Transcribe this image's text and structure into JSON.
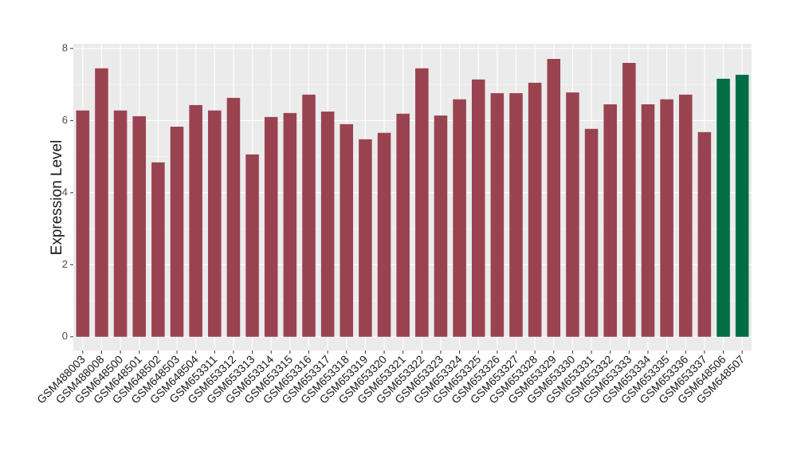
{
  "chart_data": {
    "type": "bar",
    "y_label": "Expression Level",
    "categories": [
      "GSM488003",
      "GSM488008",
      "GSM648500",
      "GSM648501",
      "GSM648502",
      "GSM648503",
      "GSM648504",
      "GSM653311",
      "GSM653312",
      "GSM653313",
      "GSM653314",
      "GSM653315",
      "GSM653316",
      "GSM653317",
      "GSM653318",
      "GSM653319",
      "GSM653320",
      "GSM653321",
      "GSM653322",
      "GSM653323",
      "GSM653324",
      "GSM653325",
      "GSM653326",
      "GSM653327",
      "GSM653328",
      "GSM653329",
      "GSM653330",
      "GSM653331",
      "GSM653332",
      "GSM653333",
      "GSM653334",
      "GSM653335",
      "GSM653336",
      "GSM653337",
      "GSM648506",
      "GSM648507"
    ],
    "values": [
      6.28,
      7.45,
      6.28,
      6.12,
      4.84,
      5.83,
      6.43,
      6.28,
      6.63,
      5.06,
      6.1,
      6.21,
      6.72,
      6.25,
      5.9,
      5.48,
      5.66,
      6.19,
      7.45,
      6.14,
      6.59,
      7.14,
      6.76,
      6.76,
      7.05,
      7.71,
      6.78,
      5.77,
      6.45,
      7.6,
      6.45,
      6.59,
      6.72,
      5.68,
      7.16,
      7.27
    ],
    "colors": [
      "#9a4350",
      "#9a4350",
      "#9a4350",
      "#9a4350",
      "#9a4350",
      "#9a4350",
      "#9a4350",
      "#9a4350",
      "#9a4350",
      "#9a4350",
      "#9a4350",
      "#9a4350",
      "#9a4350",
      "#9a4350",
      "#9a4350",
      "#9a4350",
      "#9a4350",
      "#9a4350",
      "#9a4350",
      "#9a4350",
      "#9a4350",
      "#9a4350",
      "#9a4350",
      "#9a4350",
      "#9a4350",
      "#9a4350",
      "#9a4350",
      "#9a4350",
      "#9a4350",
      "#9a4350",
      "#9a4350",
      "#9a4350",
      "#9a4350",
      "#9a4350",
      "#006d45",
      "#006d45"
    ],
    "ylim": [
      -0.38,
      8.13
    ],
    "yticks": [
      0,
      2,
      4,
      6,
      8
    ],
    "grid": true
  }
}
